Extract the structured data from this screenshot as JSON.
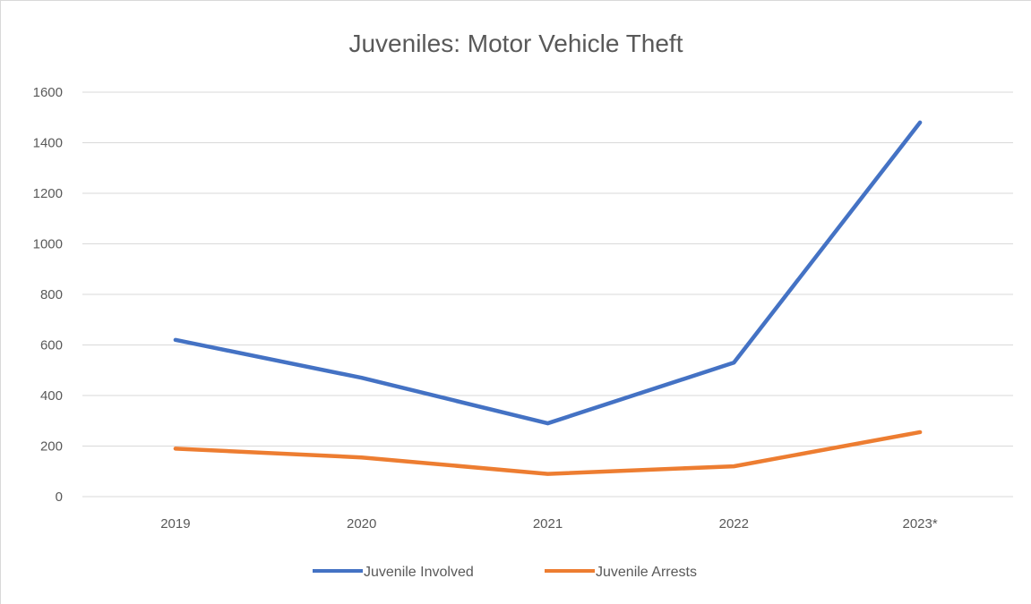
{
  "chart_data": {
    "type": "line",
    "title": "Juveniles: Motor Vehicle Theft",
    "categories": [
      "2019",
      "2020",
      "2021",
      "2022",
      "2023*"
    ],
    "series": [
      {
        "name": "Juvenile Involved",
        "color": "#4472c4",
        "values": [
          620,
          470,
          290,
          530,
          1480
        ]
      },
      {
        "name": "Juvenile Arrests",
        "color": "#ed7d31",
        "values": [
          190,
          155,
          90,
          120,
          255
        ]
      }
    ],
    "y_ticks": [
      "0",
      "200",
      "400",
      "600",
      "800",
      "1000",
      "1200",
      "1400",
      "1600"
    ],
    "ylim": [
      0,
      1600
    ],
    "grid": true,
    "legend_position": "bottom"
  }
}
